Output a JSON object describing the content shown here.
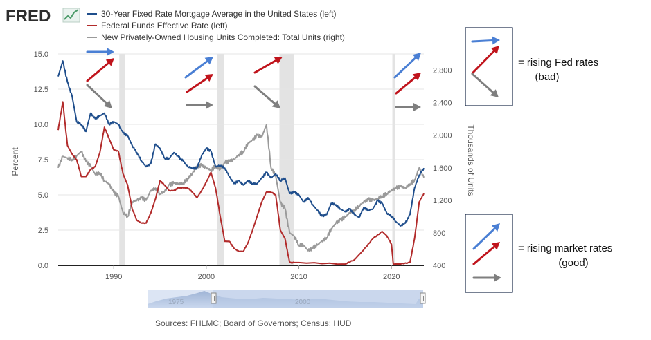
{
  "brand": {
    "logo_text": "FRED"
  },
  "legend": [
    {
      "label": "30-Year Fixed Rate Mortgage Average in the United States (left)",
      "color": "#1f4e8c"
    },
    {
      "label": "Federal Funds Effective Rate (left)",
      "color": "#b22b2b"
    },
    {
      "label": "New Privately-Owned Housing Units Completed: Total Units (right)",
      "color": "#9a9a9a"
    }
  ],
  "axes": {
    "left_title": "Percent",
    "right_title": "Thousands of Units",
    "left_ticks": [
      "0.0",
      "2.5",
      "5.0",
      "7.5",
      "10.0",
      "12.5",
      "15.0"
    ],
    "right_ticks": [
      "400",
      "800",
      "1,200",
      "1,600",
      "2,000",
      "2,400",
      "2,800"
    ],
    "x_ticks": [
      "1990",
      "2000",
      "2010",
      "2020"
    ]
  },
  "slider": {
    "left_label": "1975",
    "right_label": "2000"
  },
  "source": "Sources: FHLMC; Board of Governors; Census; HUD",
  "notes": {
    "top_line1": "= rising Fed rates",
    "top_line2": "(bad)",
    "bottom_line1": "= rising market rates",
    "bottom_line2": "(good)"
  },
  "colors": {
    "mortgage": "#1f4e8c",
    "fedfunds": "#b22b2b",
    "housing": "#9a9a9a",
    "arrow_blue": "#4a7fd4",
    "arrow_red": "#c0141c",
    "arrow_gray": "#7f7f7f",
    "recession": "#e3e3e3"
  },
  "chart_data": {
    "type": "line",
    "x_range": [
      1984,
      2023.5
    ],
    "ylim_left": [
      0,
      15
    ],
    "ylim_right": [
      400,
      3000
    ],
    "grid": true,
    "recessions": [
      [
        1990.6,
        1991.2
      ],
      [
        2001.2,
        2001.9
      ],
      [
        2007.9,
        2009.5
      ],
      [
        2020.1,
        2020.4
      ]
    ],
    "series": [
      {
        "name": "30-Year Fixed Rate Mortgage Average in the United States (left)",
        "axis": "left",
        "x": [
          1984,
          1984.5,
          1985,
          1985.5,
          1986,
          1986.5,
          1987,
          1987.5,
          1988,
          1988.5,
          1989,
          1989.5,
          1990,
          1990.5,
          1991,
          1991.5,
          1992,
          1992.5,
          1993,
          1993.5,
          1994,
          1994.5,
          1995,
          1995.5,
          1996,
          1996.5,
          1997,
          1997.5,
          1998,
          1998.5,
          1999,
          1999.5,
          2000,
          2000.5,
          2001,
          2001.5,
          2002,
          2002.5,
          2003,
          2003.5,
          2004,
          2004.5,
          2005,
          2005.5,
          2006,
          2006.5,
          2007,
          2007.5,
          2008,
          2008.5,
          2009,
          2009.5,
          2010,
          2010.5,
          2011,
          2011.5,
          2012,
          2012.5,
          2013,
          2013.5,
          2014,
          2014.5,
          2015,
          2015.5,
          2016,
          2016.5,
          2017,
          2017.5,
          2018,
          2018.5,
          2019,
          2019.5,
          2020,
          2020.5,
          2021,
          2021.5,
          2022,
          2022.5,
          2023,
          2023.5
        ],
        "y": [
          13.4,
          14.5,
          13.0,
          12.0,
          10.2,
          10.0,
          9.5,
          10.8,
          10.4,
          10.6,
          10.8,
          10.0,
          10.2,
          10.0,
          9.4,
          9.2,
          8.5,
          8.0,
          7.4,
          7.0,
          7.2,
          8.6,
          8.3,
          7.6,
          7.6,
          8.0,
          7.7,
          7.4,
          7.0,
          6.9,
          6.9,
          7.8,
          8.3,
          8.1,
          7.0,
          7.1,
          6.9,
          6.3,
          5.8,
          6.0,
          5.7,
          6.0,
          5.8,
          5.8,
          6.2,
          6.6,
          6.2,
          6.5,
          6.0,
          6.2,
          5.1,
          5.2,
          5.0,
          4.5,
          4.8,
          4.3,
          3.9,
          3.5,
          3.6,
          4.4,
          4.3,
          4.0,
          3.8,
          4.0,
          3.6,
          3.4,
          4.1,
          3.9,
          4.0,
          4.6,
          4.4,
          3.7,
          3.5,
          3.1,
          2.8,
          3.0,
          3.6,
          5.5,
          6.4,
          6.9
        ]
      },
      {
        "name": "Federal Funds Effective Rate (left)",
        "axis": "left",
        "x": [
          1984,
          1984.5,
          1985,
          1985.5,
          1986,
          1986.5,
          1987,
          1987.5,
          1988,
          1988.5,
          1989,
          1989.5,
          1990,
          1990.5,
          1991,
          1991.5,
          1992,
          1992.5,
          1993,
          1993.5,
          1994,
          1994.5,
          1995,
          1995.5,
          1996,
          1996.5,
          1997,
          1997.5,
          1998,
          1998.5,
          1999,
          1999.5,
          2000,
          2000.5,
          2001,
          2001.5,
          2002,
          2002.5,
          2003,
          2003.5,
          2004,
          2004.5,
          2005,
          2005.5,
          2006,
          2006.5,
          2007,
          2007.5,
          2008,
          2008.5,
          2009,
          2009.5,
          2010,
          2015,
          2016,
          2017,
          2018,
          2019,
          2019.5,
          2020,
          2020.2,
          2021,
          2022,
          2022.5,
          2023,
          2023.5
        ],
        "y": [
          9.6,
          11.6,
          8.5,
          7.9,
          7.5,
          6.3,
          6.3,
          6.8,
          7.0,
          8.0,
          9.8,
          9.0,
          8.2,
          8.1,
          6.5,
          5.7,
          4.0,
          3.2,
          3.0,
          3.0,
          3.7,
          4.7,
          6.0,
          5.7,
          5.3,
          5.3,
          5.5,
          5.5,
          5.5,
          5.2,
          4.8,
          5.3,
          5.9,
          6.6,
          5.5,
          3.5,
          1.7,
          1.7,
          1.2,
          1.0,
          1.0,
          1.6,
          2.5,
          3.5,
          4.5,
          5.2,
          5.2,
          5.0,
          2.5,
          1.9,
          0.2,
          0.2,
          0.2,
          0.1,
          0.4,
          1.1,
          1.9,
          2.4,
          2.1,
          1.5,
          0.1,
          0.1,
          0.2,
          1.9,
          4.5,
          5.1
        ]
      },
      {
        "name": "New Privately-Owned Housing Units Completed: Total Units (right)",
        "axis": "right",
        "x": [
          1984,
          1984.5,
          1985,
          1985.5,
          1986,
          1986.5,
          1987,
          1987.5,
          1988,
          1988.5,
          1989,
          1989.5,
          1990,
          1990.5,
          1991,
          1991.5,
          1992,
          1992.5,
          1993,
          1993.5,
          1994,
          1994.5,
          1995,
          1995.5,
          1996,
          1996.5,
          1997,
          1997.5,
          1998,
          1998.5,
          1999,
          1999.5,
          2000,
          2000.5,
          2001,
          2001.5,
          2002,
          2002.5,
          2003,
          2003.5,
          2004,
          2004.5,
          2005,
          2005.5,
          2006,
          2006.5,
          2007,
          2007.5,
          2008,
          2008.5,
          2009,
          2009.5,
          2010,
          2010.5,
          2011,
          2011.5,
          2012,
          2012.5,
          2013,
          2013.5,
          2014,
          2014.5,
          2015,
          2015.5,
          2016,
          2016.5,
          2017,
          2017.5,
          2018,
          2018.5,
          2019,
          2019.5,
          2020,
          2020.5,
          2021,
          2021.5,
          2022,
          2022.5,
          2023,
          2023.5
        ],
        "y": [
          1600,
          1740,
          1720,
          1700,
          1750,
          1800,
          1680,
          1620,
          1520,
          1540,
          1440,
          1400,
          1300,
          1250,
          1050,
          1000,
          1180,
          1200,
          1230,
          1200,
          1320,
          1350,
          1280,
          1310,
          1390,
          1410,
          1400,
          1410,
          1470,
          1530,
          1620,
          1630,
          1600,
          1570,
          1620,
          1580,
          1660,
          1680,
          1700,
          1760,
          1800,
          1900,
          1940,
          2000,
          1980,
          2130,
          1600,
          1500,
          1170,
          1100,
          800,
          760,
          650,
          650,
          580,
          610,
          650,
          700,
          740,
          850,
          920,
          960,
          990,
          1050,
          1080,
          1130,
          1180,
          1210,
          1200,
          1220,
          1250,
          1280,
          1320,
          1350,
          1370,
          1350,
          1400,
          1450,
          1600,
          1480
        ]
      }
    ]
  }
}
